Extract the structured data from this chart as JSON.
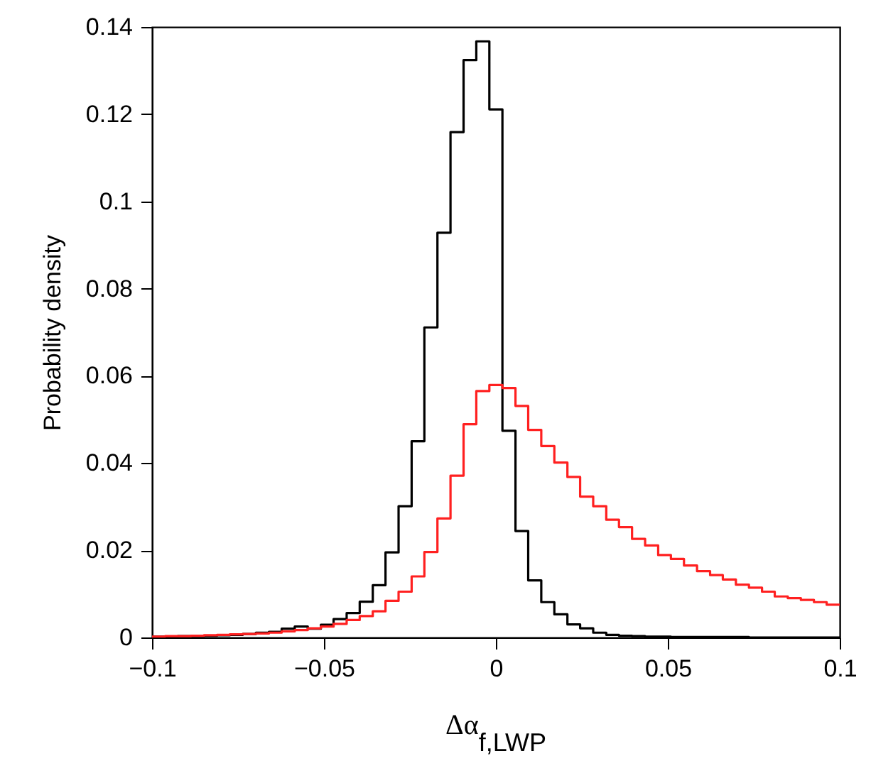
{
  "chart_data": {
    "type": "histogram",
    "xlabel": "Δα$_{f,LWP}$",
    "ylabel": "Probability density",
    "bins": [
      -0.1,
      -0.0962,
      -0.0925,
      -0.0887,
      -0.0849,
      -0.0811,
      -0.0774,
      -0.0736,
      -0.0698,
      -0.066,
      -0.0623,
      -0.0585,
      -0.0547,
      -0.0509,
      -0.0472,
      -0.0434,
      -0.0396,
      -0.0358,
      -0.0321,
      -0.0283,
      -0.0245,
      -0.0208,
      -0.017,
      -0.0132,
      -0.0094,
      -0.0057,
      -0.0019,
      0.0019,
      0.0057,
      0.0094,
      0.0132,
      0.017,
      0.0208,
      0.0245,
      0.0283,
      0.0321,
      0.0358,
      0.0396,
      0.0434,
      0.0472,
      0.0509,
      0.0547,
      0.0585,
      0.0623,
      0.066,
      0.0698,
      0.0736,
      0.0774,
      0.0811,
      0.0849,
      0.0887,
      0.0925,
      0.0962,
      0.1
    ],
    "series": [
      {
        "color": "#000000",
        "values": [
          0.0002,
          0.0002,
          0.0003,
          0.0003,
          0.0004,
          0.0005,
          0.0006,
          0.0008,
          0.0011,
          0.0013,
          0.002,
          0.0025,
          0.002,
          0.0029,
          0.0042,
          0.0056,
          0.0082,
          0.012,
          0.0195,
          0.0301,
          0.045,
          0.0711,
          0.0928,
          0.1159,
          0.1324,
          0.1367,
          0.1211,
          0.0474,
          0.0244,
          0.0131,
          0.0081,
          0.0053,
          0.003,
          0.0021,
          0.0011,
          0.0006,
          0.0004,
          0.0003,
          0.0002,
          0.0002,
          0.0001,
          0.0001,
          0.0001,
          0.0001,
          0.0001,
          0.0001,
          0,
          0,
          0,
          0,
          0,
          0,
          0
        ]
      },
      {
        "color": "#ff2020",
        "values": [
          0.0002,
          0.0003,
          0.0003,
          0.0004,
          0.0005,
          0.0006,
          0.0007,
          0.0008,
          0.0009,
          0.0011,
          0.0014,
          0.0017,
          0.0021,
          0.0025,
          0.0031,
          0.004,
          0.0049,
          0.006,
          0.0084,
          0.0105,
          0.014,
          0.0196,
          0.0273,
          0.0371,
          0.0489,
          0.0565,
          0.0579,
          0.0572,
          0.0531,
          0.0476,
          0.0439,
          0.0401,
          0.0368,
          0.0323,
          0.0301,
          0.027,
          0.0253,
          0.0226,
          0.0211,
          0.0189,
          0.018,
          0.0165,
          0.0152,
          0.0143,
          0.0133,
          0.0121,
          0.0114,
          0.0105,
          0.0094,
          0.009,
          0.0086,
          0.0081,
          0.0075
        ]
      }
    ],
    "xlim": [
      -0.1,
      0.1
    ],
    "xticks": [
      {
        "value": -0.1,
        "label": "−0.1"
      },
      {
        "value": -0.05,
        "label": "−0.05"
      },
      0,
      0.05,
      0.1
    ],
    "ylim": [
      0,
      0.14
    ],
    "yticks": [
      0,
      0.02,
      0.04,
      0.06,
      0.08,
      0.1,
      0.12,
      0.14
    ]
  }
}
